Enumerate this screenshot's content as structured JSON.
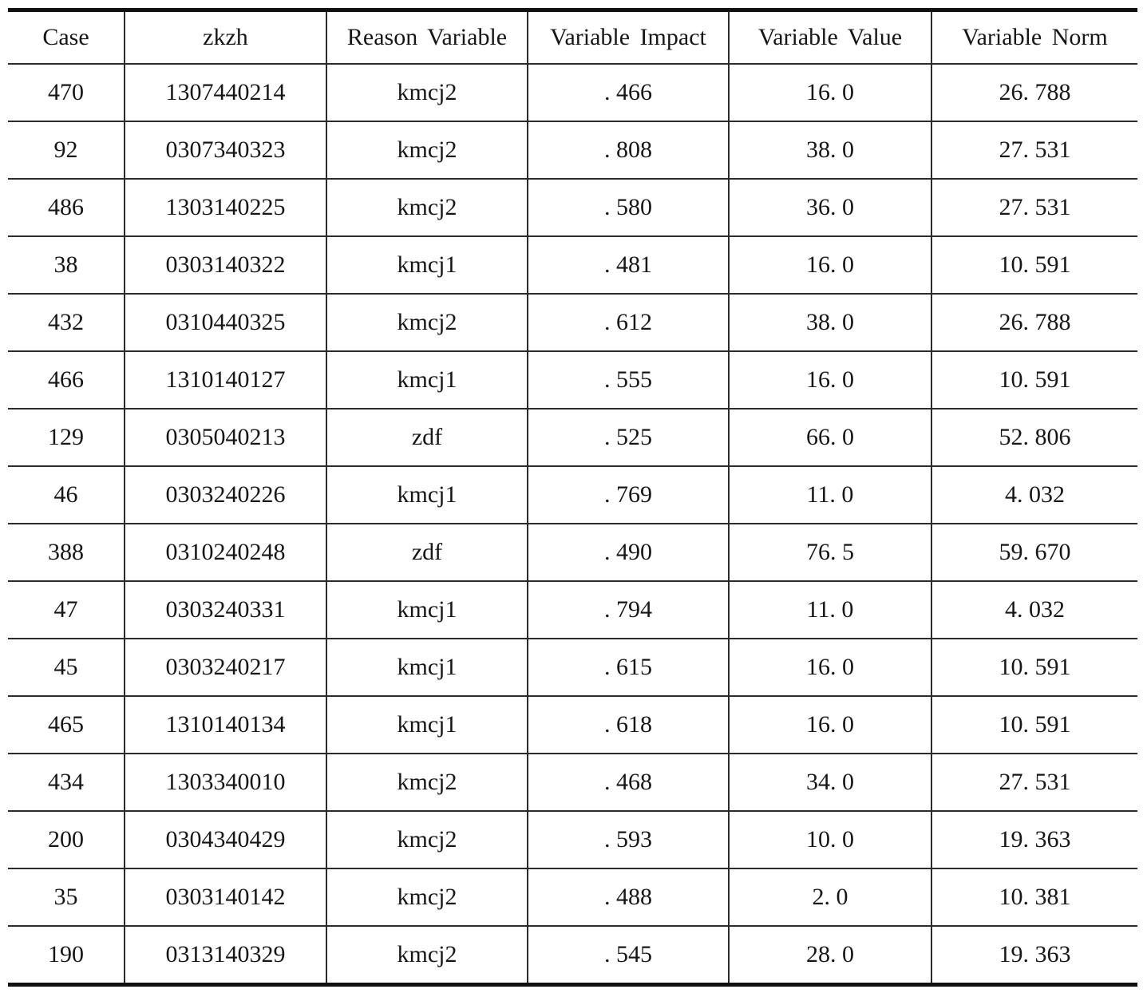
{
  "table": {
    "columns": [
      "Case",
      "zkzh",
      "Reason Variable",
      "Variable Impact",
      "Variable Value",
      "Variable Norm"
    ],
    "rows": [
      [
        "470",
        "1307440214",
        "kmcj2",
        ". 466",
        "16. 0",
        "26. 788"
      ],
      [
        "92",
        "0307340323",
        "kmcj2",
        ". 808",
        "38. 0",
        "27. 531"
      ],
      [
        "486",
        "1303140225",
        "kmcj2",
        ". 580",
        "36. 0",
        "27. 531"
      ],
      [
        "38",
        "0303140322",
        "kmcj1",
        ". 481",
        "16. 0",
        "10. 591"
      ],
      [
        "432",
        "0310440325",
        "kmcj2",
        ". 612",
        "38. 0",
        "26. 788"
      ],
      [
        "466",
        "1310140127",
        "kmcj1",
        ". 555",
        "16. 0",
        "10. 591"
      ],
      [
        "129",
        "0305040213",
        "zdf",
        ". 525",
        "66. 0",
        "52. 806"
      ],
      [
        "46",
        "0303240226",
        "kmcj1",
        ". 769",
        "11. 0",
        "4. 032"
      ],
      [
        "388",
        "0310240248",
        "zdf",
        ". 490",
        "76. 5",
        "59. 670"
      ],
      [
        "47",
        "0303240331",
        "kmcj1",
        ". 794",
        "11. 0",
        "4. 032"
      ],
      [
        "45",
        "0303240217",
        "kmcj1",
        ". 615",
        "16. 0",
        "10. 591"
      ],
      [
        "465",
        "1310140134",
        "kmcj1",
        ". 618",
        "16. 0",
        "10. 591"
      ],
      [
        "434",
        "1303340010",
        "kmcj2",
        ". 468",
        "34. 0",
        "27. 531"
      ],
      [
        "200",
        "0304340429",
        "kmcj2",
        ". 593",
        "10. 0",
        "19. 363"
      ],
      [
        "35",
        "0303140142",
        "kmcj2",
        ". 488",
        "2. 0",
        "10. 381"
      ],
      [
        "190",
        "0313140329",
        "kmcj2",
        ". 545",
        "28. 0",
        "19. 363"
      ]
    ]
  }
}
